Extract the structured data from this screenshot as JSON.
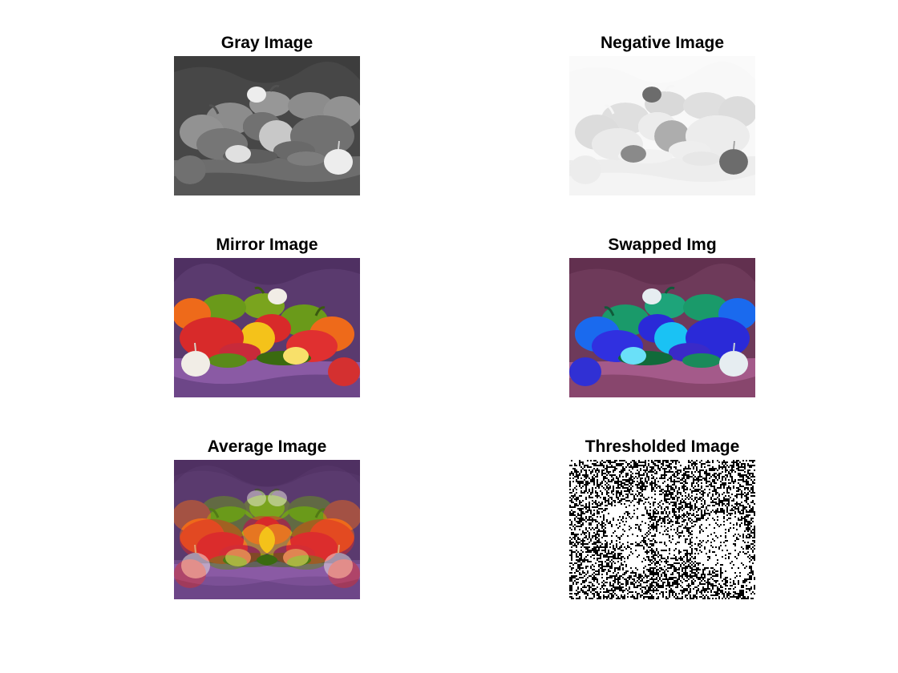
{
  "figure": {
    "panels": [
      {
        "title": "Gray Image",
        "variant": "gray"
      },
      {
        "title": "Negative Image",
        "variant": "negative"
      },
      {
        "title": "Mirror Image",
        "variant": "mirror"
      },
      {
        "title": "Swapped Img",
        "variant": "swapped"
      },
      {
        "title": "Average Image",
        "variant": "average"
      },
      {
        "title": "Thresholded Image",
        "variant": "threshold"
      }
    ],
    "colors": {
      "background": "#ffffff",
      "cloth_purple": "#5a3a6e",
      "cloth_light": "#8a5aa4",
      "pepper_red": "#d82a2a",
      "pepper_yellow": "#f4c21a",
      "pepper_orange": "#ee6a1a",
      "pepper_green": "#6a9a1a",
      "garlic": "#f1ede6"
    }
  }
}
